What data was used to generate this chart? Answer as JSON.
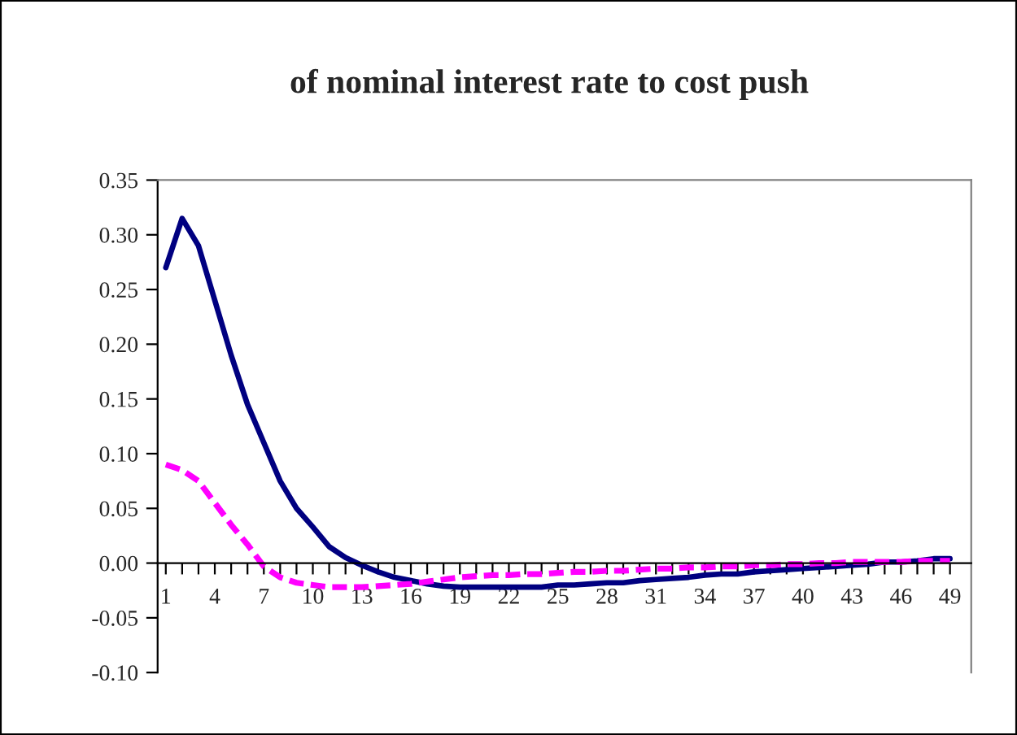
{
  "chart_data": {
    "type": "line",
    "title": "of nominal interest rate to cost push",
    "categories": [
      "1",
      null,
      null,
      "4",
      null,
      null,
      "7",
      null,
      null,
      "10",
      null,
      null,
      "13",
      null,
      null,
      "16",
      null,
      null,
      "19",
      null,
      null,
      "22",
      null,
      null,
      "25",
      null,
      null,
      "28",
      null,
      null,
      "31",
      null,
      null,
      "34",
      null,
      null,
      "37",
      null,
      null,
      "40",
      null,
      null,
      "43",
      null,
      null,
      "46",
      null,
      null,
      "49"
    ],
    "series": [
      {
        "color": "#000080",
        "line_style": "solid",
        "values": [
          0.27,
          0.315,
          0.29,
          0.24,
          0.19,
          0.145,
          0.11,
          0.075,
          0.05,
          0.033,
          0.015,
          0.005,
          -0.002,
          -0.008,
          -0.013,
          -0.016,
          -0.019,
          -0.021,
          -0.022,
          -0.022,
          -0.022,
          -0.022,
          -0.022,
          -0.022,
          -0.02,
          -0.02,
          -0.019,
          -0.018,
          -0.018,
          -0.016,
          -0.015,
          -0.014,
          -0.013,
          -0.011,
          -0.01,
          -0.01,
          -0.008,
          -0.007,
          -0.006,
          -0.005,
          -0.004,
          -0.003,
          -0.002,
          -0.001,
          0.001,
          0.001,
          0.002,
          0.004,
          0.004
        ]
      },
      {
        "color": "#ff00ff",
        "line_style": "dashed",
        "values": [
          0.09,
          0.085,
          0.075,
          0.055,
          0.035,
          0.017,
          -0.003,
          -0.013,
          -0.018,
          -0.02,
          -0.022,
          -0.022,
          -0.022,
          -0.021,
          -0.02,
          -0.019,
          -0.017,
          -0.015,
          -0.013,
          -0.012,
          -0.011,
          -0.011,
          -0.01,
          -0.01,
          -0.009,
          -0.008,
          -0.008,
          -0.007,
          -0.007,
          -0.006,
          -0.005,
          -0.005,
          -0.004,
          -0.004,
          -0.003,
          -0.003,
          -0.002,
          -0.002,
          -0.001,
          -0.001,
          0.0,
          0.0,
          0.001,
          0.001,
          0.001,
          0.001,
          0.002,
          0.002,
          0.002
        ]
      }
    ],
    "ylim": [
      -0.1,
      0.35
    ],
    "yticks": [
      {
        "value": -0.1,
        "label": "-0.10"
      },
      {
        "value": -0.05,
        "label": "-0.05"
      },
      {
        "value": 0,
        "label": "0.00"
      },
      {
        "value": 0.05,
        "label": "0.05"
      },
      {
        "value": 0.1,
        "label": "0.10"
      },
      {
        "value": 0.15,
        "label": "0.15"
      },
      {
        "value": 0.2,
        "label": "0.20"
      },
      {
        "value": 0.25,
        "label": "0.25"
      },
      {
        "value": 0.3,
        "label": "0.30"
      },
      {
        "value": 0.35,
        "label": "0.35"
      }
    ],
    "grid": false,
    "legend": false
  }
}
